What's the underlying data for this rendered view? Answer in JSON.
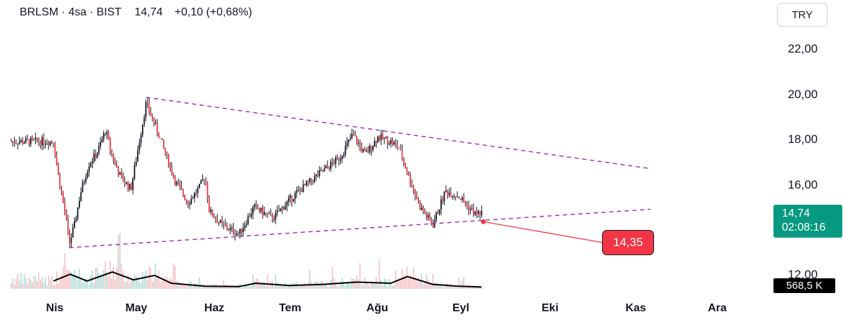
{
  "header": {
    "symbol": "BRLSM",
    "sep": "·",
    "interval": "4sa",
    "exchange": "BIST",
    "price": "14,74",
    "change": "+0,10",
    "change_pct": "(+0,68%)"
  },
  "currency_button": "TRY",
  "price_scale": {
    "ticks": [
      "22,00",
      "20,00",
      "18,00",
      "16,00",
      "12,00"
    ]
  },
  "current_price_label": {
    "price": "14,74",
    "countdown": "02:08:16"
  },
  "volume_label": "568,5 K",
  "callout_label": "14,35",
  "time_axis": {
    "labels": [
      "Nis",
      "May",
      "Haz",
      "Tem",
      "Ağu",
      "Eyl",
      "Eki",
      "Kas",
      "Ara"
    ]
  },
  "colors": {
    "up": "#089981",
    "down": "#f23645",
    "candle_body": "#131722",
    "trendline": "#9c27b0",
    "callout": "#f23645",
    "volume_up": "#a8d8cf",
    "volume_down": "#f3b8bc"
  },
  "chart_data": {
    "type": "candlestick",
    "symbol": "BRLSM",
    "interval": "4sa",
    "x_months": [
      "Nis",
      "May",
      "Haz",
      "Tem",
      "Ağu",
      "Eyl",
      "Eki",
      "Kas",
      "Ara"
    ],
    "ylim": [
      12,
      22.8
    ],
    "y_ticks": [
      12,
      16,
      18,
      20,
      22
    ],
    "last_price": 14.74,
    "close_path": [
      {
        "m": 0.0,
        "p": 17.9
      },
      {
        "m": 0.08,
        "p": 15.9
      },
      {
        "m": 0.15,
        "p": 14.5
      },
      {
        "m": 0.19,
        "p": 13.4
      },
      {
        "m": 0.25,
        "p": 14.2
      },
      {
        "m": 0.32,
        "p": 15.6
      },
      {
        "m": 0.42,
        "p": 16.9
      },
      {
        "m": 0.52,
        "p": 17.4
      },
      {
        "m": 0.62,
        "p": 18.4
      },
      {
        "m": 0.7,
        "p": 17.2
      },
      {
        "m": 0.8,
        "p": 16.3
      },
      {
        "m": 0.92,
        "p": 15.8
      },
      {
        "m": 1.0,
        "p": 17.5
      },
      {
        "m": 1.1,
        "p": 19.6
      },
      {
        "m": 1.25,
        "p": 18.2
      },
      {
        "m": 1.45,
        "p": 16.1
      },
      {
        "m": 1.6,
        "p": 15.2
      },
      {
        "m": 1.74,
        "p": 15.9
      },
      {
        "m": 1.8,
        "p": 16.4
      },
      {
        "m": 1.85,
        "p": 14.8
      },
      {
        "m": 2.0,
        "p": 14.2
      },
      {
        "m": 2.2,
        "p": 13.8
      },
      {
        "m": 2.38,
        "p": 15.0
      },
      {
        "m": 2.6,
        "p": 14.5
      },
      {
        "m": 2.85,
        "p": 15.5
      },
      {
        "m": 3.1,
        "p": 16.3
      },
      {
        "m": 3.4,
        "p": 17.2
      },
      {
        "m": 3.55,
        "p": 18.2
      },
      {
        "m": 3.7,
        "p": 17.3
      },
      {
        "m": 3.85,
        "p": 18.1
      },
      {
        "m": 4.0,
        "p": 17.9
      },
      {
        "m": 4.1,
        "p": 17.6
      },
      {
        "m": 4.2,
        "p": 16.5
      },
      {
        "m": 4.35,
        "p": 15.0
      },
      {
        "m": 4.5,
        "p": 14.2
      },
      {
        "m": 4.65,
        "p": 15.7
      },
      {
        "m": 4.8,
        "p": 15.5
      },
      {
        "m": 5.0,
        "p": 14.7
      },
      {
        "m": 5.08,
        "p": 14.74
      }
    ],
    "trendlines": [
      {
        "name": "upper",
        "from": {
          "m": 1.1,
          "p": 19.85
        },
        "to": {
          "m": 7.08,
          "p": 16.7
        }
      },
      {
        "name": "lower",
        "from": {
          "m": 0.19,
          "p": 13.2
        },
        "to": {
          "m": 7.08,
          "p": 14.9
        }
      }
    ],
    "callout": {
      "m": 5.1,
      "p": 14.35,
      "label": "14,35"
    },
    "volume_ma_path": [
      {
        "m": 0.0,
        "v": 0.35
      },
      {
        "m": 0.2,
        "v": 0.65
      },
      {
        "m": 0.4,
        "v": 0.35
      },
      {
        "m": 0.7,
        "v": 0.75
      },
      {
        "m": 0.95,
        "v": 0.4
      },
      {
        "m": 1.2,
        "v": 0.6
      },
      {
        "m": 1.4,
        "v": 0.25
      },
      {
        "m": 1.8,
        "v": 0.12
      },
      {
        "m": 2.2,
        "v": 0.1
      },
      {
        "m": 2.4,
        "v": 0.25
      },
      {
        "m": 2.8,
        "v": 0.15
      },
      {
        "m": 3.2,
        "v": 0.2
      },
      {
        "m": 3.6,
        "v": 0.3
      },
      {
        "m": 4.0,
        "v": 0.25
      },
      {
        "m": 4.2,
        "v": 0.55
      },
      {
        "m": 4.5,
        "v": 0.2
      },
      {
        "m": 4.8,
        "v": 0.12
      },
      {
        "m": 5.08,
        "v": 0.08
      }
    ]
  }
}
